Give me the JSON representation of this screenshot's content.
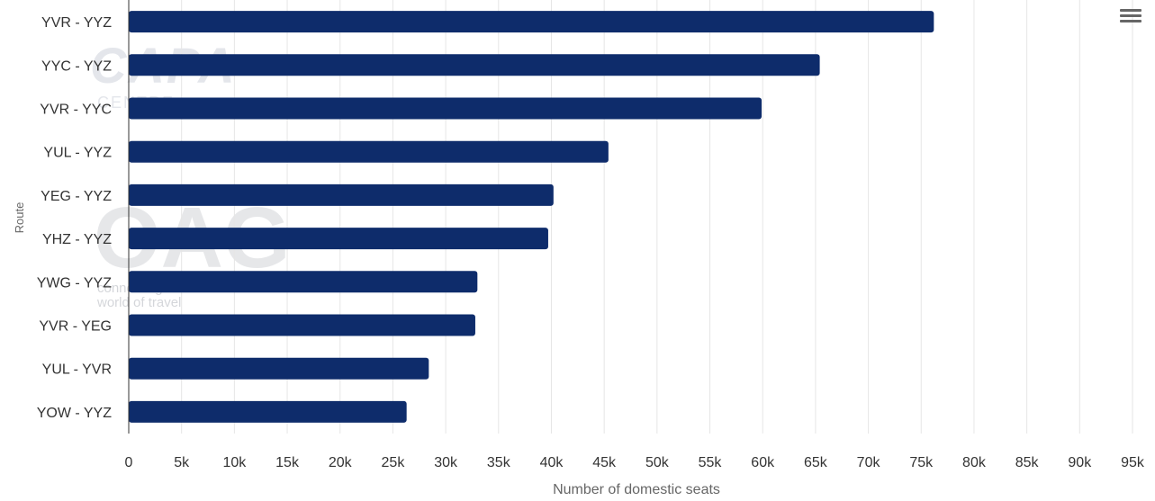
{
  "chart_data": {
    "type": "bar",
    "orientation": "horizontal",
    "categories": [
      "YVR - YYZ",
      "YYC - YYZ",
      "YVR - YYC",
      "YUL - YYZ",
      "YEG - YYZ",
      "YHZ - YYZ",
      "YWG - YYZ",
      "YVR - YEG",
      "YUL - YVR",
      "YOW - YYZ"
    ],
    "values": [
      76200,
      65400,
      59900,
      45400,
      40200,
      39700,
      33000,
      32800,
      28400,
      26300
    ],
    "xlabel": "Number of domestic seats",
    "ylabel": "Route",
    "xlim": [
      0,
      95000
    ],
    "xticks": [
      0,
      5000,
      10000,
      15000,
      20000,
      25000,
      30000,
      35000,
      40000,
      45000,
      50000,
      55000,
      60000,
      65000,
      70000,
      75000,
      80000,
      85000,
      90000,
      95000
    ],
    "xtick_labels": [
      "0",
      "5k",
      "10k",
      "15k",
      "20k",
      "25k",
      "30k",
      "35k",
      "40k",
      "45k",
      "50k",
      "55k",
      "60k",
      "65k",
      "70k",
      "75k",
      "80k",
      "85k",
      "90k",
      "95k"
    ],
    "grid": true,
    "bar_color": "#0e2c6b"
  },
  "watermarks": {
    "capa": "CAPA",
    "capa_sub": "CENTRE",
    "oag": "OAG",
    "oag_line1": "connecting the",
    "oag_line2": "world of travel"
  },
  "menu_icon": "hamburger-menu-icon"
}
